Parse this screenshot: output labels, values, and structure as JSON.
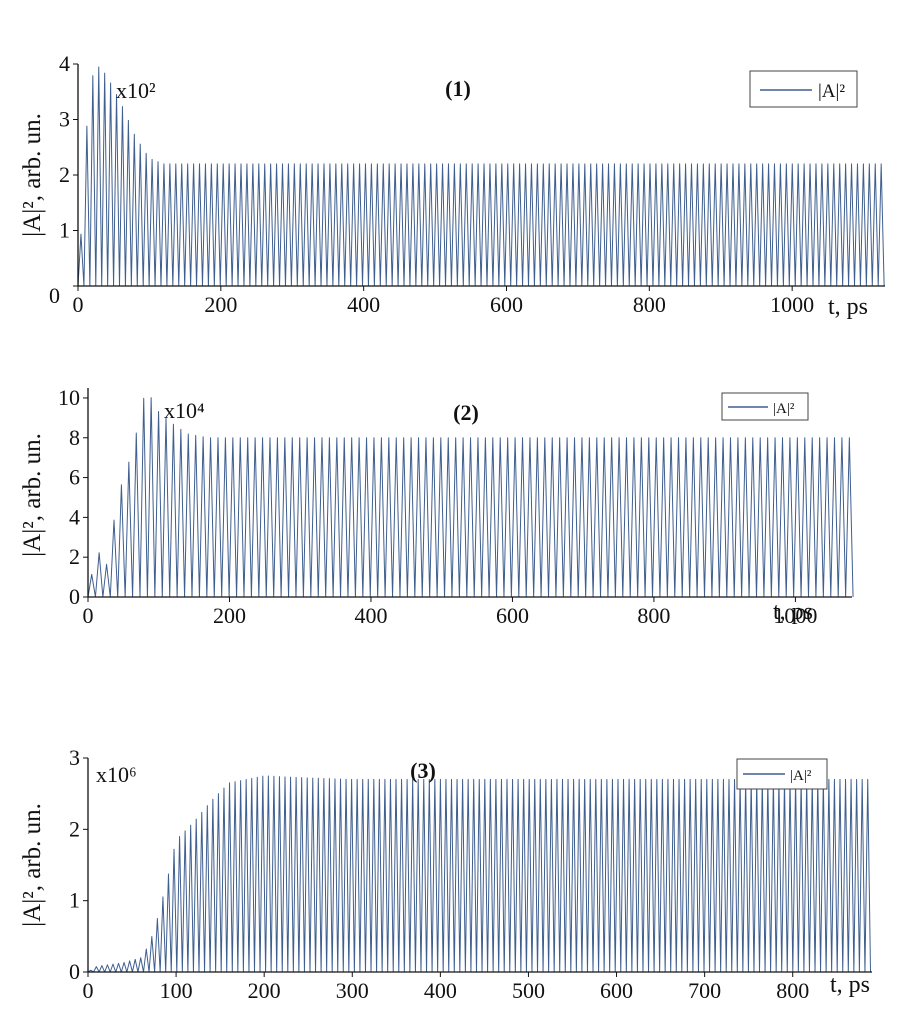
{
  "chart_data": [
    {
      "type": "line",
      "panel_label": "(1)",
      "scale_note": "x10²",
      "xlabel": "t, ps",
      "ylabel": "|A|², arb. un.",
      "xlim": [
        0,
        1130
      ],
      "ylim": [
        0,
        4
      ],
      "x_ticks": [
        0,
        200,
        400,
        600,
        800,
        1000
      ],
      "y_ticks": [
        0,
        1,
        2,
        3,
        4
      ],
      "legend": "|A|²",
      "legend_position": "top-right",
      "grid": false,
      "color": "#3f5f8f",
      "pulse_period_ps": 8.3,
      "series": [
        {
          "name": "|A|²",
          "peak_envelope": {
            "t": [
              0,
              8,
              15,
              25,
              40,
              60,
              80,
              100,
              120,
              1130
            ],
            "peak": [
              0,
              1.8,
              3.5,
              4.0,
              3.8,
              3.3,
              2.7,
              2.3,
              2.2,
              2.2
            ]
          },
          "baseline": 0
        }
      ]
    },
    {
      "type": "line",
      "panel_label": "(2)",
      "scale_note": "x10⁴",
      "xlabel": "t, ps",
      "ylabel": "|A|², arb. un.",
      "xlim": [
        0,
        1080
      ],
      "ylim": [
        0,
        10.5
      ],
      "x_ticks": [
        0,
        200,
        400,
        600,
        800,
        1000
      ],
      "y_ticks": [
        0,
        2,
        4,
        6,
        8,
        10
      ],
      "legend": "|A|²",
      "legend_position": "top-right",
      "grid": false,
      "color": "#3f5f8f",
      "pulse_period_ps": 10.5,
      "series": [
        {
          "name": "|A|²",
          "peak_envelope": {
            "t": [
              0,
              12,
              20,
              28,
              40,
              50,
              60,
              70,
              80,
              90,
              100,
              120,
              140,
              170,
              1080
            ],
            "peak": [
              0,
              2.6,
              1.8,
              1.6,
              4.7,
              6.0,
              7.0,
              8.5,
              10.2,
              10.0,
              9.3,
              8.7,
              8.2,
              8.0,
              8.0
            ]
          },
          "baseline": 0
        }
      ]
    },
    {
      "type": "line",
      "panel_label": "(3)",
      "scale_note": "x10⁶",
      "xlabel": "t, ps",
      "ylabel": "|A|², arb. un.",
      "xlim": [
        0,
        890
      ],
      "ylim": [
        0,
        3
      ],
      "x_ticks": [
        0,
        100,
        200,
        300,
        400,
        500,
        600,
        700,
        800
      ],
      "y_ticks": [
        0,
        1,
        2,
        3
      ],
      "legend": "|A|²",
      "legend_position": "top-right",
      "grid": false,
      "color": "#3f5f8f",
      "pulse_period_ps": 6.3,
      "series": [
        {
          "name": "|A|²",
          "peak_envelope": {
            "t": [
              0,
              10,
              40,
              60,
              70,
              80,
              90,
              100,
              120,
              140,
              160,
              200,
              250,
              300,
              890
            ],
            "peak": [
              0,
              0.08,
              0.13,
              0.2,
              0.4,
              0.8,
              1.3,
              1.85,
              2.1,
              2.4,
              2.65,
              2.75,
              2.72,
              2.7,
              2.7
            ]
          },
          "baseline": 0
        }
      ]
    }
  ]
}
